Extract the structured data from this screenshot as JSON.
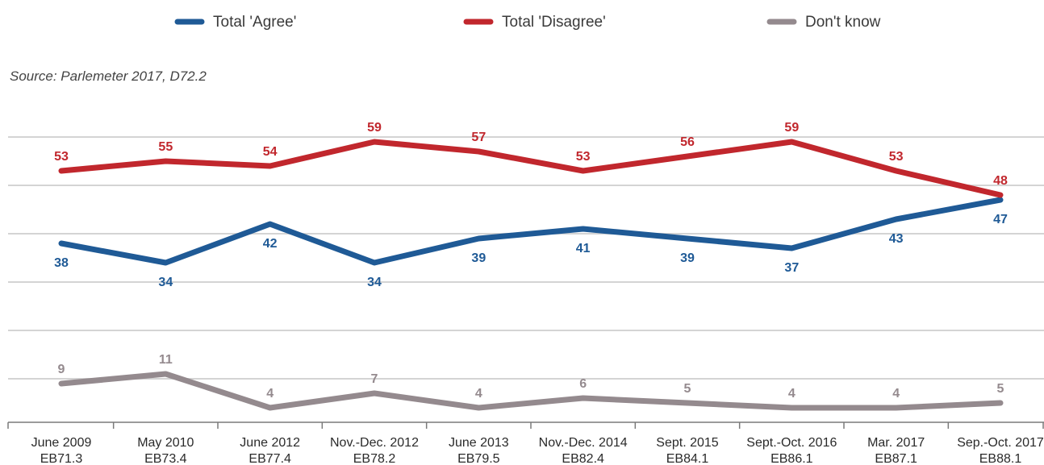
{
  "chart_data": {
    "type": "line",
    "source": "Source: Parlemeter 2017, D72.2",
    "categories": [
      [
        "June 2009",
        "EB71.3"
      ],
      [
        "May 2010",
        "EB73.4"
      ],
      [
        "June 2012",
        "EB77.4"
      ],
      [
        "Nov.-Dec. 2012",
        "EB78.2"
      ],
      [
        "June 2013",
        "EB79.5"
      ],
      [
        "Nov.-Dec. 2014",
        "EB82.4"
      ],
      [
        "Sept. 2015",
        "EB84.1"
      ],
      [
        "Sept.-Oct. 2016",
        "EB86.1"
      ],
      [
        "Mar. 2017",
        "EB87.1"
      ],
      [
        "Sep.-Oct. 2017",
        "EB88.1"
      ]
    ],
    "series": [
      {
        "name": "Total 'Agree'",
        "color": "#1f5a96",
        "values": [
          38,
          34,
          42,
          34,
          39,
          41,
          39,
          37,
          43,
          47
        ],
        "label_position": [
          "below",
          "below",
          "below",
          "below",
          "below",
          "below",
          "below",
          "below",
          "below",
          "below"
        ]
      },
      {
        "name": "Total 'Disagree'",
        "color": "#c1272d",
        "values": [
          53,
          55,
          54,
          59,
          57,
          53,
          56,
          59,
          53,
          48
        ],
        "label_position": [
          "above",
          "above",
          "above",
          "above",
          "above",
          "above",
          "above",
          "above",
          "above",
          "above"
        ]
      },
      {
        "name": "Don't know",
        "color": "#948a8e",
        "values": [
          9,
          11,
          4,
          7,
          4,
          6,
          5,
          4,
          4,
          5
        ],
        "label_position": [
          "above",
          "above",
          "above",
          "above",
          "above",
          "above",
          "above",
          "above",
          "above",
          "above"
        ]
      }
    ],
    "ylim": [
      0,
      65
    ],
    "gridlines": [
      10,
      20,
      30,
      40,
      50,
      60
    ],
    "grid": true,
    "legend_position": "top"
  }
}
